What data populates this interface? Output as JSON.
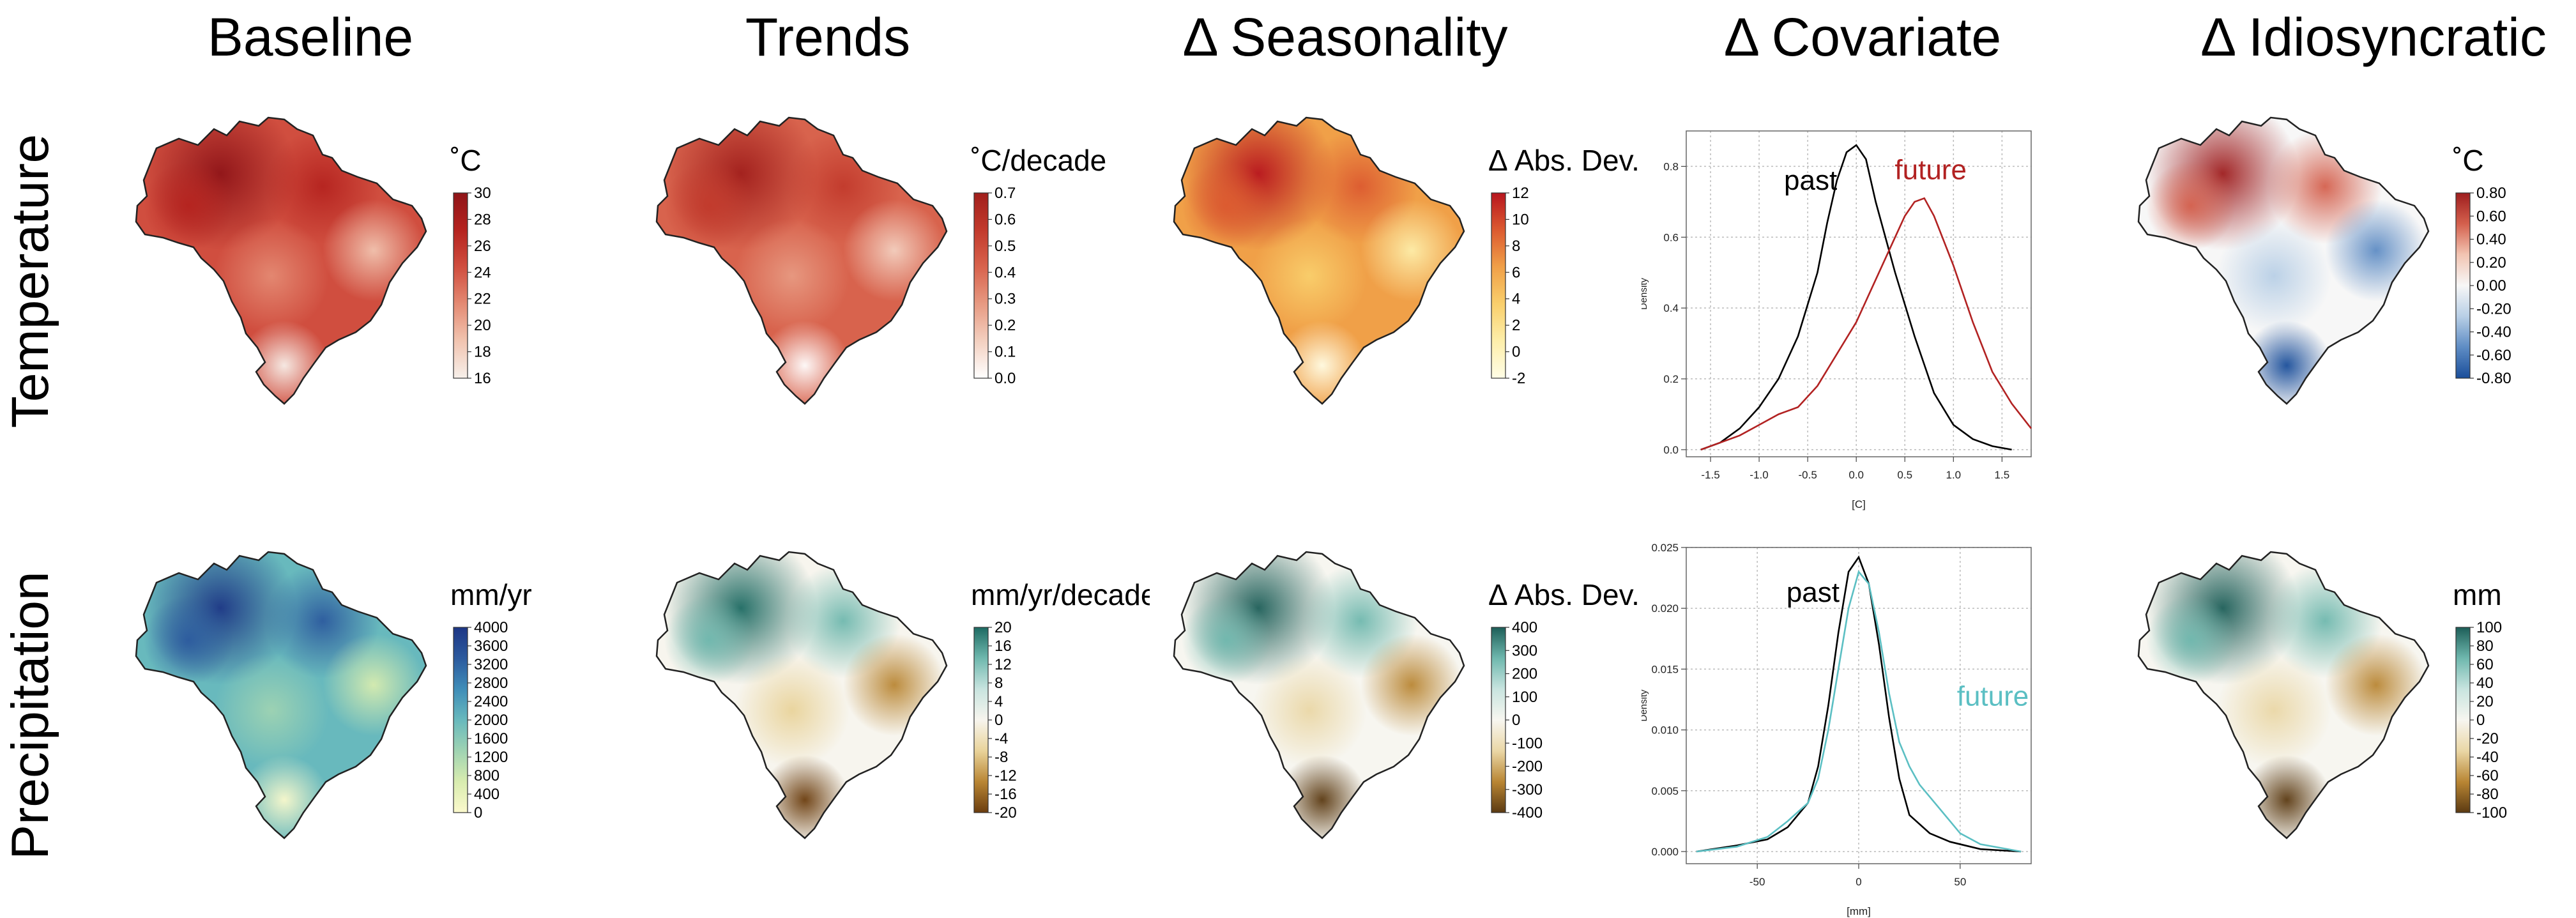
{
  "columns": [
    "Baseline",
    "Trends",
    "Δ Seasonality",
    "Δ Covariate",
    "Δ  Idiosyncratic"
  ],
  "rows": [
    "Temperature",
    "Precipitation"
  ],
  "maps": [
    {
      "id": "temp-baseline",
      "unit": "˚C",
      "ticks": [
        "30",
        "28",
        "26",
        "24",
        "22",
        "20",
        "18",
        "16"
      ],
      "colors": [
        "#f7f0ea",
        "#f1c4b0",
        "#e48a73",
        "#d04e3f",
        "#b5231f",
        "#8f1418"
      ]
    },
    {
      "id": "temp-trends",
      "unit": "˚C/decade",
      "ticks": [
        "0.7",
        "0.6",
        "0.5",
        "0.4",
        "0.3",
        "0.2",
        "0.1",
        "0.0"
      ],
      "colors": [
        "#ffffff",
        "#f3d0c0",
        "#e79a82",
        "#d8634d",
        "#c23a2c",
        "#a11f1c"
      ]
    },
    {
      "id": "temp-seasonality",
      "unit": "Δ Abs. Dev.",
      "ticks": [
        "12",
        "10",
        "8",
        "6",
        "4",
        "2",
        "0",
        "-2"
      ],
      "colors": [
        "#fffde6",
        "#fdeeaa",
        "#f9cf6c",
        "#f0a048",
        "#dc5a30",
        "#b7151e"
      ]
    },
    {
      "id": "temp-idiosyncratic",
      "unit": "˚C",
      "ticks": [
        "0.80",
        "0.60",
        "0.40",
        "0.20",
        "0.00",
        "-0.20",
        "-0.40",
        "-0.60",
        "-0.80"
      ],
      "colors": [
        "#1a4e9a",
        "#5e8cc4",
        "#b8cfe6",
        "#f7f7f7",
        "#f2c4b2",
        "#d4604d",
        "#9e1d1e"
      ]
    },
    {
      "id": "precip-baseline",
      "unit": "mm/yr",
      "ticks": [
        "4000",
        "3600",
        "3200",
        "2800",
        "2400",
        "2000",
        "1600",
        "1200",
        "800",
        "400",
        "0"
      ],
      "colors": [
        "#fbf9cc",
        "#d8ecaf",
        "#9fd3b2",
        "#68b9bd",
        "#3f8db8",
        "#2c5a9e",
        "#1d3685"
      ]
    },
    {
      "id": "precip-trends",
      "unit": "mm/yr/decade",
      "ticks": [
        "20",
        "16",
        "12",
        "8",
        "4",
        "0",
        "-4",
        "-8",
        "-12",
        "-16",
        "-20"
      ],
      "colors": [
        "#6b3d0e",
        "#b98634",
        "#e9d39a",
        "#f7f5ee",
        "#c8e4df",
        "#6fb8ae",
        "#1d6a62"
      ]
    },
    {
      "id": "precip-seasonality",
      "unit": "Δ Abs. Dev.",
      "ticks": [
        "400",
        "300",
        "200",
        "100",
        "0",
        "-100",
        "-200",
        "-300",
        "-400"
      ],
      "colors": [
        "#5b3a12",
        "#b98634",
        "#ead7a6",
        "#f7f6f0",
        "#c8e4df",
        "#6fb8ae",
        "#1d5e58"
      ]
    },
    {
      "id": "precip-idiosyncratic",
      "unit": "mm",
      "ticks": [
        "100",
        "80",
        "60",
        "40",
        "20",
        "0",
        "-20",
        "-40",
        "-60",
        "-80",
        "-100"
      ],
      "colors": [
        "#5b3a12",
        "#b98634",
        "#ead7a6",
        "#f7f6f0",
        "#c8e4df",
        "#6fb8ae",
        "#1d5e58"
      ]
    }
  ],
  "chart_data": [
    {
      "type": "line",
      "xlabel": "[C]",
      "ylabel": "Density",
      "xlim": [
        -1.75,
        1.8
      ],
      "ylim": [
        -0.02,
        0.9
      ],
      "xticks": [
        "-1.5",
        "-1.0",
        "-0.5",
        "0.0",
        "0.5",
        "1.0",
        "1.5"
      ],
      "yticks": [
        "0.0",
        "0.2",
        "0.4",
        "0.6",
        "0.8"
      ],
      "grid": true,
      "series": [
        {
          "name": "past",
          "color": "#000000",
          "x": [
            -1.6,
            -1.4,
            -1.2,
            -1.0,
            -0.8,
            -0.6,
            -0.4,
            -0.3,
            -0.2,
            -0.1,
            0.0,
            0.1,
            0.2,
            0.4,
            0.6,
            0.8,
            1.0,
            1.2,
            1.4,
            1.6
          ],
          "y": [
            0.0,
            0.02,
            0.06,
            0.12,
            0.2,
            0.32,
            0.5,
            0.64,
            0.76,
            0.84,
            0.86,
            0.82,
            0.7,
            0.5,
            0.32,
            0.16,
            0.07,
            0.03,
            0.01,
            0.0
          ]
        },
        {
          "name": "future",
          "color": "#b22222",
          "x": [
            -1.6,
            -1.2,
            -1.0,
            -0.8,
            -0.6,
            -0.4,
            -0.2,
            0.0,
            0.2,
            0.4,
            0.5,
            0.6,
            0.7,
            0.8,
            1.0,
            1.2,
            1.4,
            1.6,
            1.8
          ],
          "y": [
            0.0,
            0.04,
            0.07,
            0.1,
            0.12,
            0.18,
            0.27,
            0.36,
            0.48,
            0.6,
            0.66,
            0.7,
            0.71,
            0.66,
            0.52,
            0.36,
            0.22,
            0.13,
            0.06
          ]
        }
      ]
    },
    {
      "type": "line",
      "xlabel": "[mm]",
      "ylabel": "Density",
      "xlim": [
        -85,
        85
      ],
      "ylim": [
        -0.001,
        0.025
      ],
      "xticks": [
        "-50",
        "0",
        "50"
      ],
      "xtick_values": [
        -50,
        0,
        50
      ],
      "yticks": [
        "0.000",
        "0.005",
        "0.010",
        "0.015",
        "0.020",
        "0.025"
      ],
      "grid": true,
      "series": [
        {
          "name": "past",
          "color": "#000000",
          "x": [
            -80,
            -60,
            -45,
            -35,
            -25,
            -20,
            -15,
            -10,
            -5,
            0,
            5,
            10,
            15,
            20,
            25,
            35,
            45,
            60,
            80
          ],
          "y": [
            0.0,
            0.0005,
            0.001,
            0.002,
            0.004,
            0.007,
            0.012,
            0.018,
            0.023,
            0.0242,
            0.022,
            0.017,
            0.011,
            0.006,
            0.003,
            0.0015,
            0.0008,
            0.0002,
            0.0
          ]
        },
        {
          "name": "future",
          "color": "#5bbfc3",
          "x": [
            -80,
            -60,
            -45,
            -35,
            -25,
            -20,
            -15,
            -10,
            -5,
            0,
            5,
            10,
            15,
            20,
            25,
            30,
            40,
            50,
            60,
            80
          ],
          "y": [
            0.0,
            0.0004,
            0.0012,
            0.0025,
            0.004,
            0.006,
            0.01,
            0.015,
            0.02,
            0.023,
            0.022,
            0.018,
            0.013,
            0.009,
            0.007,
            0.0055,
            0.0035,
            0.0015,
            0.0006,
            0.0
          ]
        }
      ]
    }
  ]
}
